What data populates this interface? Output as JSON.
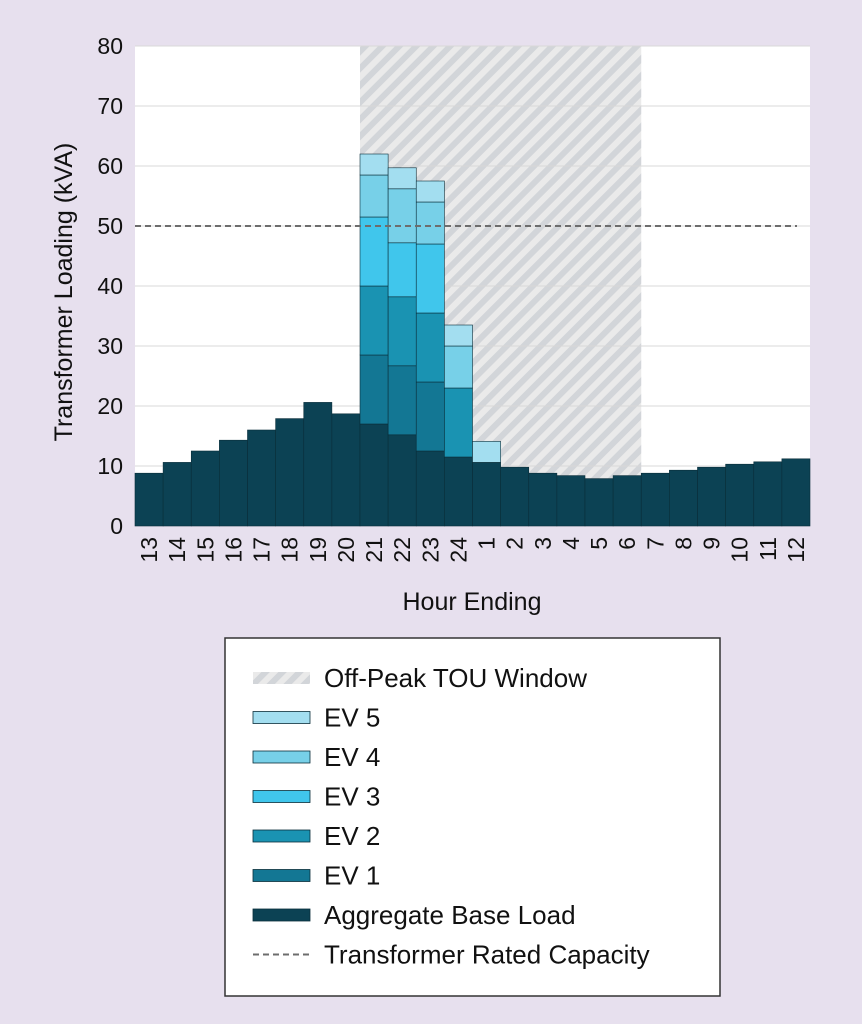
{
  "chart_data": {
    "type": "bar",
    "stacked": true,
    "categories": [
      "13",
      "14",
      "15",
      "16",
      "17",
      "18",
      "19",
      "20",
      "21",
      "22",
      "23",
      "24",
      "1",
      "2",
      "3",
      "4",
      "5",
      "6",
      "7",
      "8",
      "9",
      "10",
      "11",
      "12"
    ],
    "series": [
      {
        "name": "Aggregate Base Load",
        "color": "#0c4254",
        "values": [
          8.8,
          10.6,
          12.5,
          14.3,
          16.0,
          17.9,
          20.6,
          18.7,
          17.0,
          15.2,
          12.5,
          11.5,
          10.6,
          9.8,
          8.8,
          8.4,
          7.9,
          8.4,
          8.8,
          9.3,
          9.8,
          10.3,
          10.7,
          11.2
        ]
      },
      {
        "name": "EV 1",
        "color": "#137794",
        "values": [
          0,
          0,
          0,
          0,
          0,
          0,
          0,
          0,
          11.5,
          11.5,
          11.5,
          0,
          0,
          0,
          0,
          0,
          0,
          0,
          0,
          0,
          0,
          0,
          0,
          0
        ]
      },
      {
        "name": "EV 2",
        "color": "#1a93b2",
        "values": [
          0,
          0,
          0,
          0,
          0,
          0,
          0,
          0,
          11.5,
          11.5,
          11.5,
          11.5,
          0,
          0,
          0,
          0,
          0,
          0,
          0,
          0,
          0,
          0,
          0,
          0
        ]
      },
      {
        "name": "EV 3",
        "color": "#40c6ec",
        "values": [
          0,
          0,
          0,
          0,
          0,
          0,
          0,
          0,
          11.5,
          9.0,
          11.5,
          0,
          0,
          0,
          0,
          0,
          0,
          0,
          0,
          0,
          0,
          0,
          0,
          0
        ]
      },
      {
        "name": "EV 4",
        "color": "#77d0e8",
        "values": [
          0,
          0,
          0,
          0,
          0,
          0,
          0,
          0,
          7.0,
          9.0,
          7.0,
          7.0,
          0,
          0,
          0,
          0,
          0,
          0,
          0,
          0,
          0,
          0,
          0,
          0
        ]
      },
      {
        "name": "EV 5",
        "color": "#a3def0",
        "values": [
          0,
          0,
          0,
          0,
          0,
          0,
          0,
          0,
          3.5,
          3.5,
          3.5,
          3.5,
          3.5,
          0,
          0,
          0,
          0,
          0,
          0,
          0,
          0,
          0,
          0,
          0
        ]
      }
    ],
    "off_peak_window": {
      "label": "Off-Peak TOU Window",
      "start_category": "21",
      "end_category": "6"
    },
    "rated_capacity": {
      "label": "Transformer Rated Capacity",
      "value": 50
    },
    "xlabel": "Hour Ending",
    "ylabel": "Transformer Loading (kVA)",
    "ylim": [
      0,
      80
    ],
    "yticks": [
      0,
      10,
      20,
      30,
      40,
      50,
      60,
      70,
      80
    ],
    "grid": true,
    "legend": {
      "placement": "bottom",
      "items": [
        {
          "label": "Off-Peak TOU Window",
          "kind": "hatch"
        },
        {
          "label": "EV 5",
          "kind": "swatch",
          "color": "#a3def0"
        },
        {
          "label": "EV 4",
          "kind": "swatch",
          "color": "#77d0e8"
        },
        {
          "label": "EV 3",
          "kind": "swatch",
          "color": "#40c6ec"
        },
        {
          "label": "EV 2",
          "kind": "swatch",
          "color": "#1a93b2"
        },
        {
          "label": "EV 1",
          "kind": "swatch",
          "color": "#137794"
        },
        {
          "label": "Aggregate Base Load",
          "kind": "swatch",
          "color": "#0c4254"
        },
        {
          "label": "Transformer Rated Capacity",
          "kind": "dash"
        }
      ]
    }
  }
}
